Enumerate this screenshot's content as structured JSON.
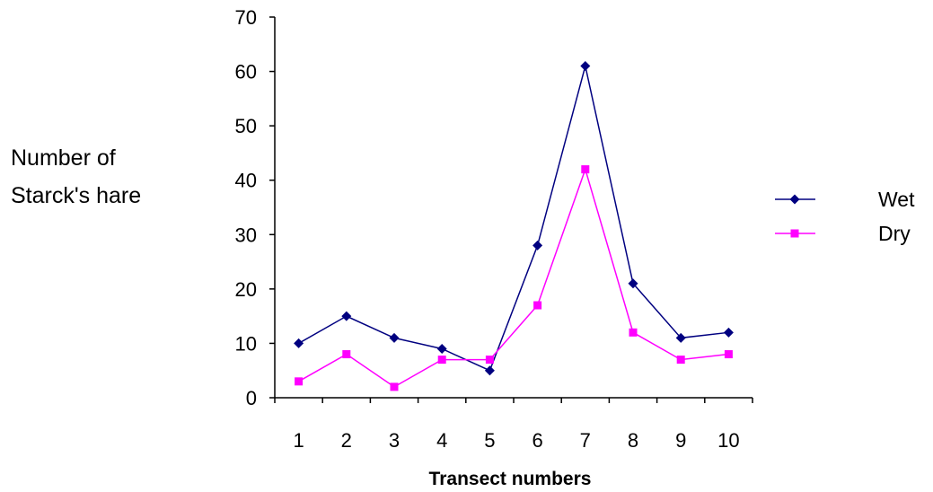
{
  "chart_data": {
    "type": "line",
    "title": "",
    "xlabel": "Transect numbers",
    "ylabel_lines": [
      "Number of",
      "Starck's hare"
    ],
    "categories": [
      "1",
      "2",
      "3",
      "4",
      "5",
      "6",
      "7",
      "8",
      "9",
      "10"
    ],
    "y_ticks": [
      "0",
      "10",
      "20",
      "30",
      "40",
      "50",
      "60",
      "70"
    ],
    "ylim": [
      0,
      70
    ],
    "grid": false,
    "legend_position": "right",
    "series": [
      {
        "name": "Wet",
        "color": "#000080",
        "marker": "diamond",
        "values": [
          10,
          15,
          11,
          9,
          5,
          28,
          61,
          21,
          11,
          12
        ]
      },
      {
        "name": "Dry",
        "color": "#ff00ff",
        "marker": "square",
        "values": [
          3,
          8,
          2,
          7,
          7,
          17,
          42,
          12,
          7,
          8
        ]
      }
    ]
  }
}
